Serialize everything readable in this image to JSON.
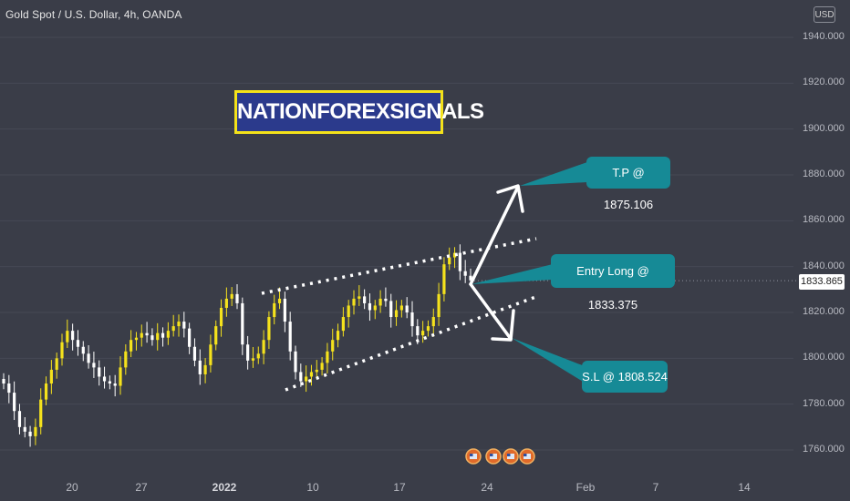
{
  "header": {
    "title": "Gold Spot / U.S. Dollar, 4h, OANDA",
    "currency_button": "USD"
  },
  "watermark_banner": "NATIONFOREXSIGNALS",
  "annotations": {
    "take_profit": "T.P @ 1875.106",
    "entry": "Entry Long @ 1833.375",
    "stop_loss": "S.L @ 1808.524"
  },
  "current_price": "1833.865",
  "colors": {
    "background": "#3a3d48",
    "up_candle": "#f5e21c",
    "down_candle": "#ffffff",
    "callout": "#168a96",
    "banner_bg": "#2b3a8c",
    "banner_border": "#f4e21a"
  },
  "chart_data": {
    "type": "candlestick",
    "title": "Gold Spot / U.S. Dollar, 4h, OANDA",
    "y_axis": {
      "ticks": [
        "1940.000",
        "1920.000",
        "1900.000",
        "1880.000",
        "1860.000",
        "1840.000",
        "1820.000",
        "1800.000",
        "1780.000",
        "1760.000"
      ],
      "ylim": [
        1750,
        1948
      ]
    },
    "x_axis": {
      "ticks": [
        "20",
        "27",
        "2022",
        "10",
        "17",
        "24",
        "Feb",
        "7",
        "14"
      ]
    },
    "close_series": [
      1789,
      1785,
      1777,
      1770,
      1768,
      1766,
      1770,
      1782,
      1789,
      1795,
      1800,
      1807,
      1812,
      1808,
      1805,
      1802,
      1798,
      1796,
      1792,
      1790,
      1789,
      1788,
      1796,
      1803,
      1808,
      1809,
      1811,
      1810,
      1808,
      1811,
      1809,
      1812,
      1814,
      1816,
      1813,
      1805,
      1799,
      1793,
      1797,
      1806,
      1814,
      1822,
      1826,
      1828,
      1824,
      1806,
      1799,
      1800,
      1802,
      1808,
      1818,
      1824,
      1826,
      1816,
      1803,
      1794,
      1790,
      1792,
      1794,
      1795,
      1798,
      1803,
      1808,
      1812,
      1818,
      1823,
      1826,
      1827,
      1824,
      1821,
      1823,
      1826,
      1825,
      1818,
      1821,
      1823,
      1820,
      1814,
      1810,
      1812,
      1814,
      1818,
      1828,
      1841,
      1844,
      1846,
      1838,
      1836,
      1834
    ],
    "levels": {
      "take_profit": 1875.106,
      "entry": 1833.375,
      "stop_loss": 1808.524,
      "current": 1833.865
    },
    "channel": {
      "upper": [
        [
          1829,
          1859
        ]
      ],
      "lower": [
        [
          1786,
          1826
        ]
      ]
    }
  }
}
